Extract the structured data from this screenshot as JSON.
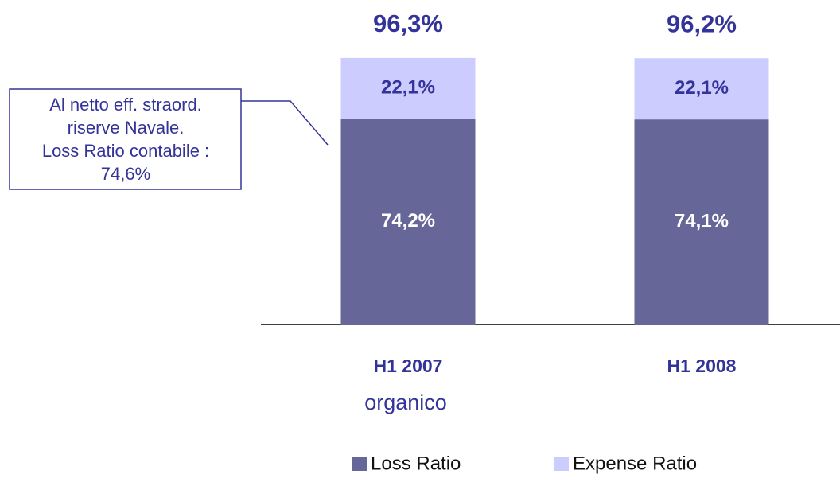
{
  "chart_data": {
    "type": "stacked_bar",
    "categories": [
      "H1 2007",
      "H1 2008"
    ],
    "category_notes": [
      "organico",
      null
    ],
    "series": [
      {
        "name": "Loss Ratio",
        "color": "#666699",
        "values": [
          74.2,
          74.1
        ],
        "value_labels": [
          "74,2%",
          "74,1%"
        ]
      },
      {
        "name": "Expense Ratio",
        "color": "#ccccff",
        "values": [
          22.1,
          22.1
        ],
        "value_labels": [
          "22,1%",
          "22,1%"
        ]
      }
    ],
    "totals": [
      96.3,
      96.2
    ],
    "total_labels": [
      "96,3%",
      "96,2%"
    ],
    "annotation": {
      "lines": [
        "Al netto eff. straord.",
        "riserve Navale.",
        "Loss Ratio contabile :",
        "74,6%"
      ]
    }
  }
}
